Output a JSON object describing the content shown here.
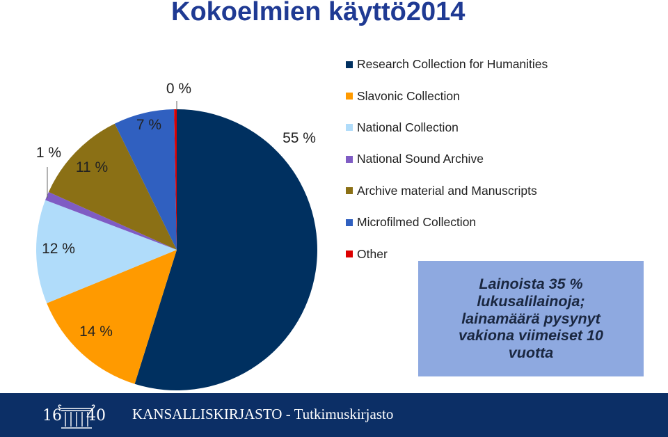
{
  "slide": {
    "title": "Kokoelmien käyttö2014"
  },
  "chart_data": {
    "type": "pie",
    "start_angle_deg": 0,
    "slices": [
      {
        "name": "Research Collection for Humanities",
        "value": 55,
        "label": "55 %",
        "color": "#003060"
      },
      {
        "name": "Slavonic Collection",
        "value": 14,
        "label": "14 %",
        "color": "#ff9a00"
      },
      {
        "name": "National Collection",
        "value": 12,
        "label": "12 %",
        "color": "#b0dcfa"
      },
      {
        "name": "National Sound Archive",
        "value": 1,
        "label": "1 %",
        "color": "#7f5cc4"
      },
      {
        "name": "Archive material and Manuscripts",
        "value": 11,
        "label": "11 %",
        "color": "#8b7015"
      },
      {
        "name": "Microfilmed Collection",
        "value": 7,
        "label": "7 %",
        "color": "#3060c0"
      },
      {
        "name": "Other",
        "value": 0.3,
        "label": "0 %",
        "color": "#dd0000"
      }
    ],
    "legend_position": "right"
  },
  "callout": {
    "text": "Lainoista 35 %\nlukusalilainoja;\nlainamäärä pysynyt\nvakiona viimeiset 10\nvuotta"
  },
  "footer": {
    "logo_left": "16",
    "logo_right": "40",
    "text": "KANSALLISKIRJASTO - Tutkimuskirjasto"
  }
}
